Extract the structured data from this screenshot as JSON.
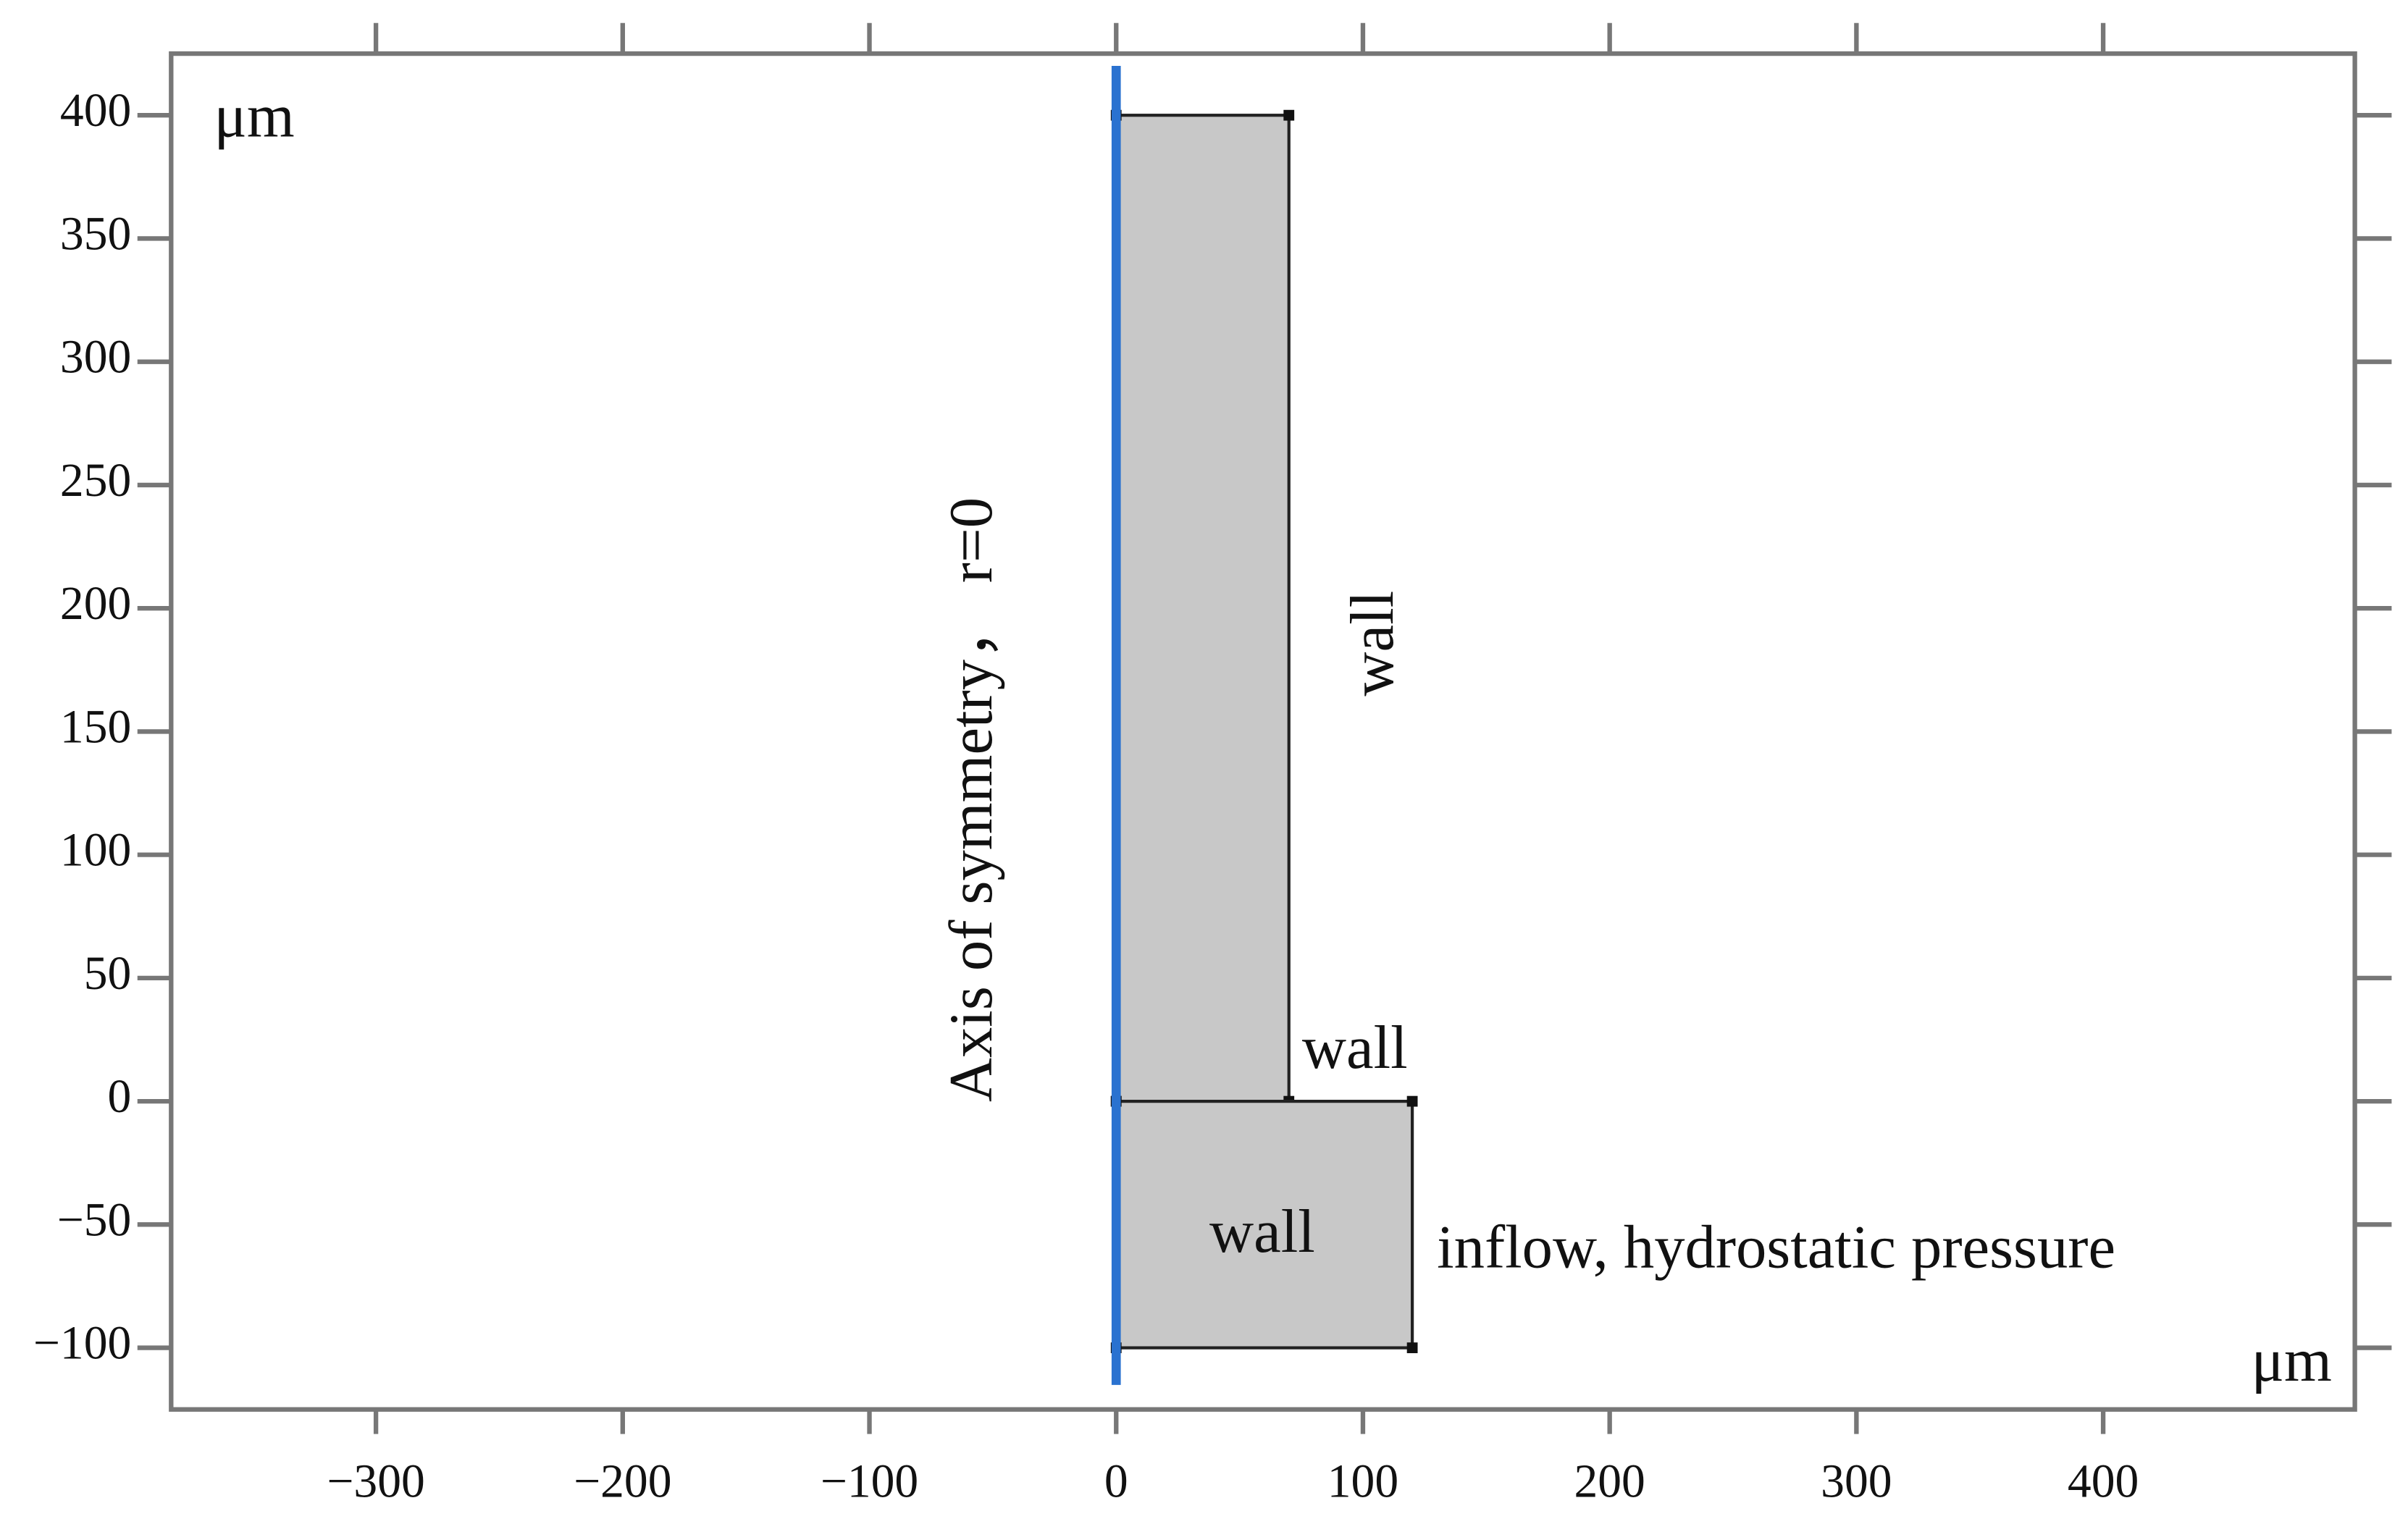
{
  "axes": {
    "xlim": [
      -383,
      502
    ],
    "ylim": [
      -125,
      425
    ],
    "xticks": [
      {
        "value": -300,
        "label": "−300"
      },
      {
        "value": -200,
        "label": "−200"
      },
      {
        "value": -100,
        "label": "−100"
      },
      0,
      100,
      200,
      300,
      400
    ],
    "yticks": [
      400,
      350,
      300,
      250,
      200,
      150,
      100,
      50,
      0,
      {
        "value": -50,
        "label": "−50"
      },
      {
        "value": -100,
        "label": "−100"
      }
    ],
    "x_unit": "μm",
    "y_unit": "μm"
  },
  "shapes": [
    {
      "r": [
        0,
        70
      ],
      "z": [
        0,
        400
      ]
    },
    {
      "r": [
        0,
        120
      ],
      "z": [
        -100,
        0
      ]
    }
  ],
  "labels": {
    "axis": "Axis of symmetry， r=0",
    "wall_outer": "wall",
    "wall_step": "wall",
    "wall_bottom": "wall",
    "inflow": "inflow, hydrostatic pressure"
  }
}
